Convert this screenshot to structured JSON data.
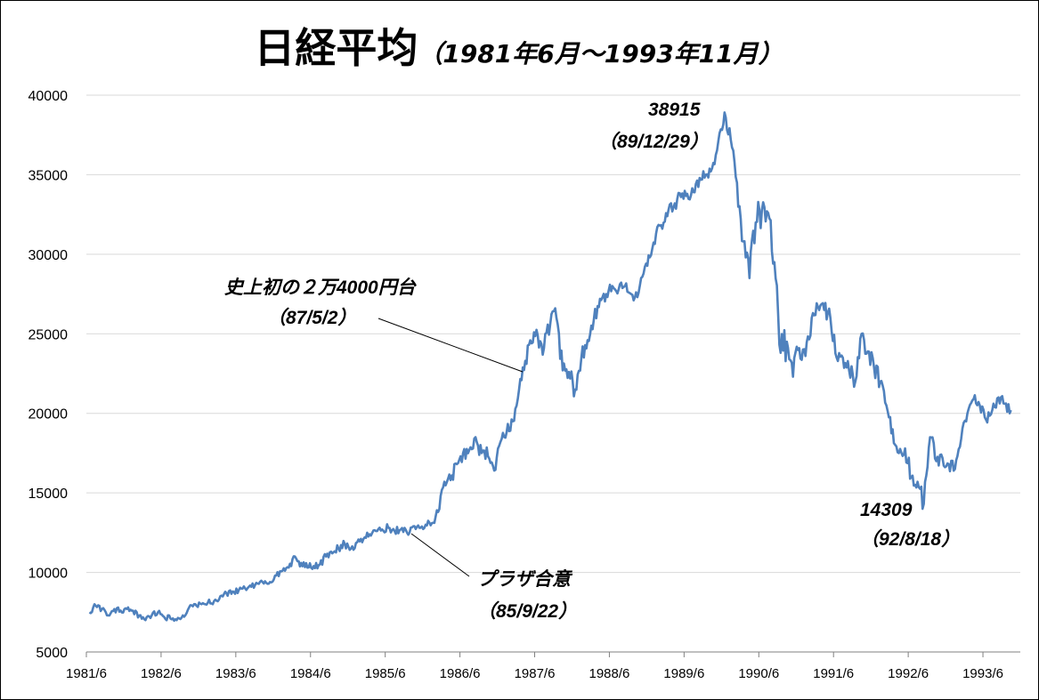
{
  "chart_data": {
    "type": "line",
    "title_main": "日経平均",
    "title_sub": "（1981年6月～1993年11月）",
    "xlabel": "",
    "ylabel": "",
    "ylim": [
      5000,
      40000
    ],
    "ytick_values": [
      5000,
      10000,
      15000,
      20000,
      25000,
      30000,
      35000,
      40000
    ],
    "ytick_labels": [
      "5000",
      "10000",
      "15000",
      "20000",
      "25000",
      "30000",
      "35000",
      "40000"
    ],
    "xlim": [
      "1981-06",
      "1993-11"
    ],
    "xtick_values": [
      "1981-06",
      "1982-06",
      "1983-06",
      "1984-06",
      "1985-06",
      "1986-06",
      "1987-06",
      "1988-06",
      "1989-06",
      "1990-06",
      "1991-06",
      "1992-06",
      "1993-06"
    ],
    "xtick_labels": [
      "1981/6",
      "1982/6",
      "1983/6",
      "1984/6",
      "1985/6",
      "1986/6",
      "1987/6",
      "1988/6",
      "1989/6",
      "1990/6",
      "1991/6",
      "1992/6",
      "1993/6"
    ],
    "grid": true,
    "legend": "none",
    "colors": {
      "line": "#4f81bd",
      "grid": "#d9d9d9",
      "axis": "#808080",
      "leader": "#000000"
    },
    "series": [
      {
        "x": [
          "1981-06",
          "1981-07",
          "1981-08",
          "1981-09",
          "1981-10",
          "1981-11",
          "1981-12",
          "1982-01",
          "1982-02",
          "1982-03",
          "1982-04",
          "1982-05",
          "1982-06",
          "1982-07",
          "1982-08",
          "1982-09",
          "1982-10",
          "1982-11",
          "1982-12",
          "1983-01",
          "1983-02",
          "1983-03",
          "1983-04",
          "1983-05",
          "1983-06",
          "1983-07",
          "1983-08",
          "1983-09",
          "1983-10",
          "1983-11",
          "1983-12",
          "1984-01",
          "1984-02",
          "1984-03",
          "1984-04",
          "1984-05",
          "1984-06",
          "1984-07",
          "1984-08",
          "1984-09",
          "1984-10",
          "1984-11",
          "1984-12",
          "1985-01",
          "1985-02",
          "1985-03",
          "1985-04",
          "1985-05",
          "1985-06",
          "1985-07",
          "1985-08",
          "1985-09",
          "1985-10",
          "1985-11",
          "1985-12",
          "1986-01",
          "1986-02",
          "1986-03",
          "1986-04",
          "1986-05",
          "1986-06",
          "1986-07",
          "1986-08",
          "1986-09",
          "1986-10",
          "1986-11",
          "1986-12",
          "1987-01",
          "1987-02",
          "1987-03",
          "1987-04",
          "1987-05",
          "1987-06",
          "1987-07",
          "1987-08",
          "1987-09",
          "1987-10",
          "1987-11",
          "1987-12",
          "1988-01",
          "1988-02",
          "1988-03",
          "1988-04",
          "1988-05",
          "1988-06",
          "1988-07",
          "1988-08",
          "1988-09",
          "1988-10",
          "1988-11",
          "1988-12",
          "1989-01",
          "1989-02",
          "1989-03",
          "1989-04",
          "1989-05",
          "1989-06",
          "1989-07",
          "1989-08",
          "1989-09",
          "1989-10",
          "1989-11",
          "1989-12",
          "1990-01",
          "1990-02",
          "1990-03",
          "1990-04",
          "1990-05",
          "1990-06",
          "1990-07",
          "1990-08",
          "1990-09",
          "1990-10",
          "1990-11",
          "1990-12",
          "1991-01",
          "1991-02",
          "1991-03",
          "1991-04",
          "1991-05",
          "1991-06",
          "1991-07",
          "1991-08",
          "1991-09",
          "1991-10",
          "1991-11",
          "1991-12",
          "1992-01",
          "1992-02",
          "1992-03",
          "1992-04",
          "1992-05",
          "1992-06",
          "1992-07",
          "1992-08",
          "1992-09",
          "1992-10",
          "1992-11",
          "1992-12",
          "1993-01",
          "1993-02",
          "1993-03",
          "1993-04",
          "1993-05",
          "1993-06",
          "1993-07",
          "1993-08",
          "1993-09",
          "1993-10",
          "1993-11"
        ],
        "values": [
          7500,
          7900,
          7700,
          7300,
          7700,
          7600,
          7700,
          7600,
          7300,
          7000,
          7300,
          7500,
          7200,
          7100,
          7000,
          7300,
          7800,
          8000,
          8000,
          8100,
          8200,
          8500,
          8700,
          8800,
          8900,
          9000,
          9100,
          9300,
          9300,
          9400,
          9800,
          10100,
          10300,
          11000,
          10600,
          10300,
          10400,
          10500,
          11000,
          11200,
          11500,
          11800,
          11500,
          11900,
          12100,
          12400,
          12600,
          12700,
          12800,
          12600,
          12700,
          12500,
          12900,
          12800,
          13000,
          13100,
          13800,
          15700,
          15800,
          16800,
          17500,
          17700,
          18500,
          17500,
          17300,
          16400,
          18200,
          18800,
          19500,
          21500,
          23300,
          24400,
          24900,
          24100,
          25600,
          26000,
          22700,
          22600,
          21500,
          23500,
          24600,
          25900,
          27200,
          27500,
          28000,
          27800,
          28000,
          27500,
          27300,
          28800,
          29800,
          31300,
          31600,
          32800,
          33200,
          33600,
          33800,
          33900,
          34800,
          35000,
          35400,
          37100,
          38915,
          37200,
          34500,
          30800,
          28500,
          32000,
          32800,
          32600,
          29500,
          23800,
          24500,
          22300,
          24100,
          23600,
          26000,
          26700,
          26500,
          26000,
          23500,
          23500,
          22700,
          22000,
          25000,
          23900,
          22900,
          22000,
          20500,
          19000,
          17500,
          17800,
          16000,
          15700,
          14309,
          18500,
          17000,
          17200,
          16800,
          16500,
          18400,
          20000,
          20900,
          20500,
          19600,
          20200,
          21000,
          20600,
          20200,
          19600
        ],
        "noise_amp": [
          200,
          220,
          200,
          180,
          200,
          200,
          200,
          200,
          180,
          160,
          180,
          200,
          180,
          180,
          180,
          200,
          200,
          180,
          180,
          180,
          200,
          200,
          200,
          200,
          200,
          200,
          200,
          220,
          220,
          220,
          250,
          260,
          260,
          350,
          330,
          320,
          300,
          300,
          300,
          280,
          260,
          260,
          260,
          250,
          230,
          230,
          230,
          250,
          250,
          250,
          250,
          230,
          230,
          230,
          250,
          280,
          400,
          400,
          420,
          500,
          520,
          520,
          550,
          550,
          520,
          480,
          450,
          450,
          500,
          550,
          600,
          650,
          650,
          650,
          700,
          700,
          650,
          650,
          650,
          550,
          500,
          500,
          450,
          400,
          380,
          380,
          380,
          350,
          350,
          400,
          450,
          450,
          450,
          450,
          450,
          450,
          450,
          450,
          450,
          450,
          450,
          500,
          450,
          600,
          800,
          1000,
          1100,
          1000,
          900,
          1000,
          1100,
          1100,
          900,
          900,
          700,
          700,
          600,
          550,
          550,
          550,
          550,
          550,
          600,
          600,
          600,
          600,
          600,
          600,
          600,
          600,
          600,
          650,
          650,
          650,
          600,
          600,
          500,
          500,
          450,
          400,
          400,
          400,
          400,
          400,
          400,
          350,
          350,
          350
        ]
      }
    ],
    "annotations": [
      {
        "key": "peak",
        "lines": [
          "38915",
          "（89/12/29）"
        ],
        "x": "1989-12",
        "y": 38915
      },
      {
        "key": "first24k",
        "lines": [
          "史上初の２万4000円台",
          "（87/5/2）"
        ],
        "x": "1987-05",
        "y": 24000,
        "leader": true
      },
      {
        "key": "plaza",
        "lines": [
          "プラザ合意",
          "（85/9/22）"
        ],
        "x": "1985-09",
        "y": 12500,
        "leader": true
      },
      {
        "key": "low92",
        "lines": [
          "14309",
          "（92/8/18）"
        ],
        "x": "1992-08",
        "y": 14309
      }
    ]
  }
}
